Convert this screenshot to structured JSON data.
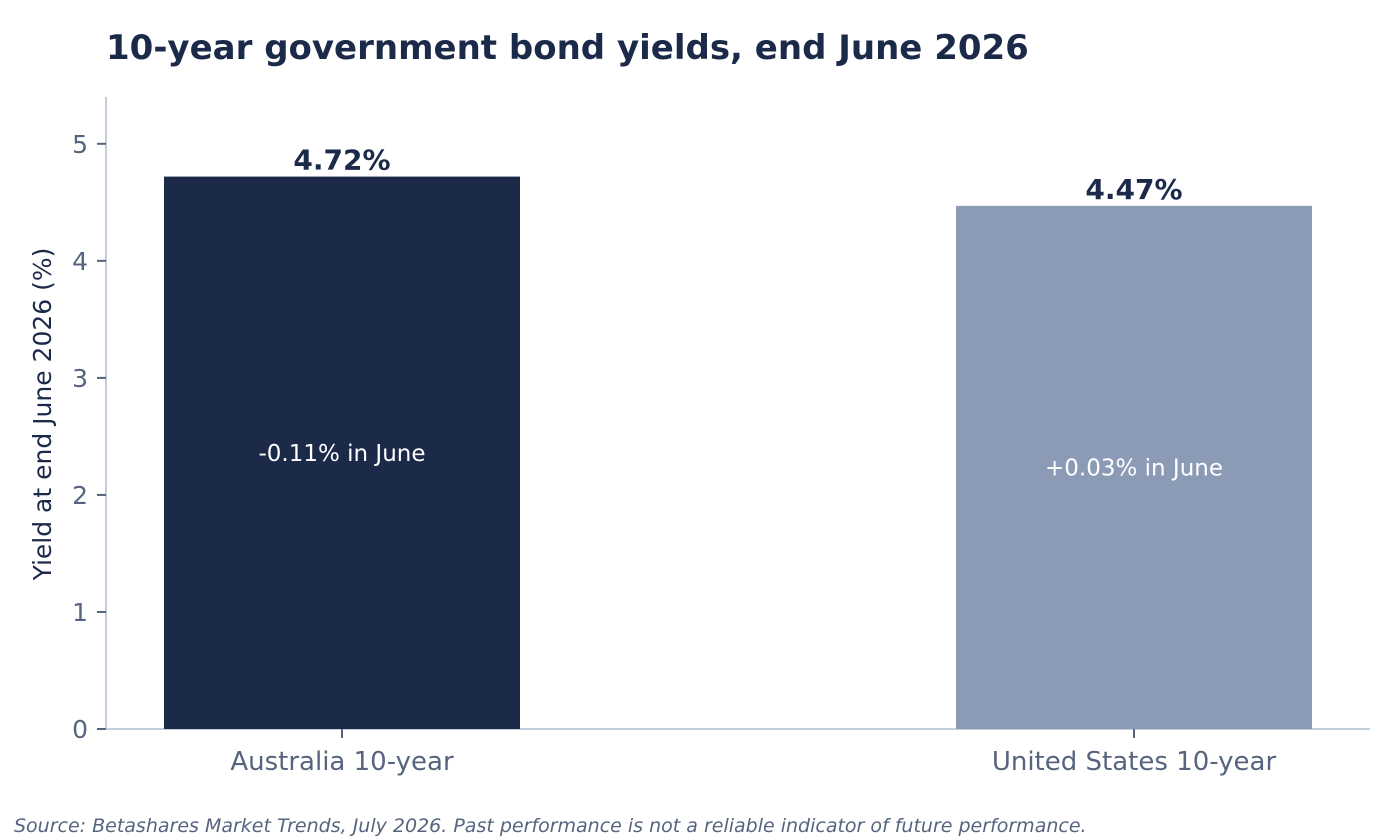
{
  "chart_data": {
    "type": "bar",
    "title": "10-year government bond yields, end June 2026",
    "ylabel": "Yield at end June 2026 (%)",
    "xlabel": "",
    "categories": [
      "Australia 10-year",
      "United States 10-year"
    ],
    "values": [
      4.72,
      4.47
    ],
    "value_labels": [
      "4.72%",
      "4.47%"
    ],
    "annotations": [
      "-0.11% in June",
      "+0.03% in June"
    ],
    "colors": [
      "#1c2a4a",
      "#8b9bb6"
    ],
    "ylim": [
      0,
      5.4
    ],
    "yticks": [
      0,
      1,
      2,
      3,
      4,
      5
    ],
    "grid": false,
    "legend": "none"
  },
  "source_note": "Source: Betashares Market Trends, July 2026. Past performance is not a reliable indicator of future performance."
}
